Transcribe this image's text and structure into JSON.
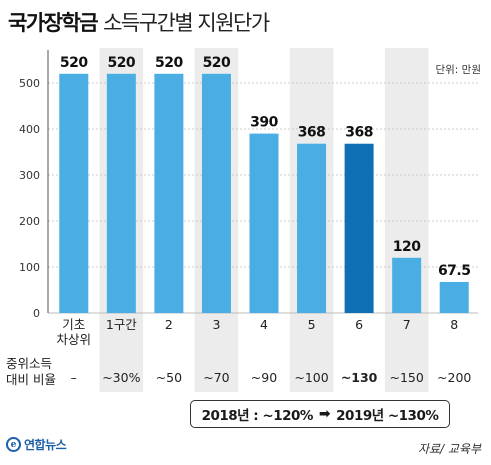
{
  "header": {
    "title_main": "국가장학금",
    "title_sub": "소득구간별 지원단가"
  },
  "unit_label": "단위: 만원",
  "row_label": "중위소득\n대비 비율",
  "note": {
    "from": "2018년 : ~120%",
    "arrow": "➡",
    "to": "2019년 ~130%"
  },
  "logo": {
    "text": "연합뉴스",
    "mark": "e"
  },
  "source": "자료/ 교육부",
  "colors": {
    "bar": "#4aaee4",
    "highlight_bar": "#0f6fb5",
    "band": "#ececec",
    "grid": "#bcbcbc"
  },
  "chart_data": {
    "type": "bar",
    "title": "국가장학금 소득구간별 지원단가",
    "ylabel": "단위: 만원",
    "ylim": [
      0,
      550
    ],
    "yticks": [
      0,
      100,
      200,
      300,
      400,
      500
    ],
    "grid": true,
    "categories": [
      "기초\n차상위",
      "1구간",
      "2",
      "3",
      "4",
      "5",
      "6",
      "7",
      "8"
    ],
    "values": [
      520,
      520,
      520,
      520,
      390,
      368,
      368,
      120,
      67.5
    ],
    "value_labels": [
      "520",
      "520",
      "520",
      "520",
      "390",
      "368",
      "368",
      "120",
      "67.5"
    ],
    "ratios": [
      "–",
      "~30%",
      "~50",
      "~70",
      "~90",
      "~100",
      "~130",
      "~150",
      "~200"
    ],
    "highlight_index": 6,
    "shaded_columns": [
      1,
      3,
      5,
      7
    ]
  }
}
